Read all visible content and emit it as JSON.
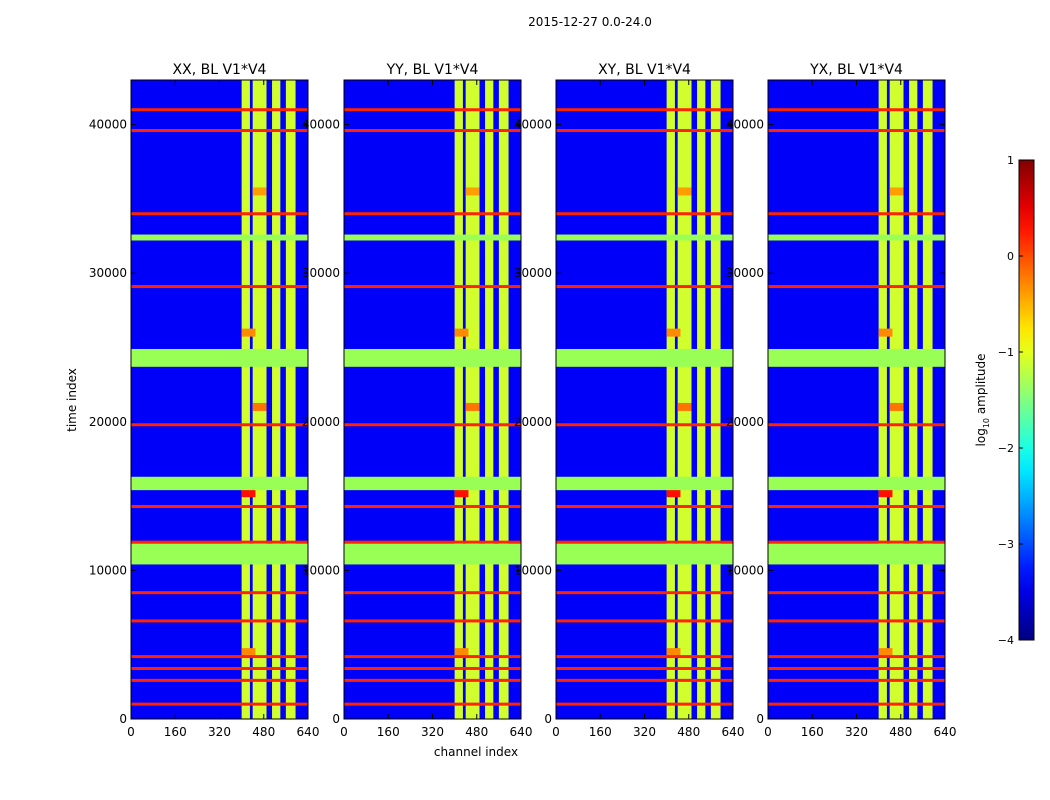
{
  "chart_data": {
    "type": "heatmap",
    "title": "2015-12-27 0.0-24.0",
    "xlabel": "channel index",
    "ylabel": "time index",
    "xlim": [
      0,
      640
    ],
    "ylim": [
      0,
      43000
    ],
    "xticks": [
      0,
      160,
      320,
      480,
      640
    ],
    "yticks": [
      0,
      10000,
      20000,
      30000,
      40000
    ],
    "colormap": "jet",
    "panels": [
      {
        "title": "XX, BL V1*V4"
      },
      {
        "title": "YY, BL V1*V4"
      },
      {
        "title": "XY, BL V1*V4"
      },
      {
        "title": "YX, BL V1*V4"
      }
    ],
    "colorbar": {
      "label": "log10 amplitude",
      "label_base": "log",
      "label_sub": "10",
      "label_rest": " amplitude",
      "range": [
        -4,
        1
      ],
      "ticks": [
        1,
        0,
        -1,
        -2,
        -3,
        -4
      ],
      "tick_labels": [
        "1",
        "0",
        "−1",
        "−2",
        "−3",
        "−4"
      ]
    },
    "flagged_time_bands": [
      [
        10400,
        11800
      ],
      [
        15400,
        16300
      ],
      [
        23700,
        24900
      ],
      [
        32200,
        32600
      ]
    ],
    "rfi_time_lines": [
      1000,
      2600,
      3400,
      4200,
      6600,
      8500,
      11900,
      14300,
      19800,
      29100,
      34000,
      39600,
      41000
    ],
    "bright_channel_bands": [
      [
        400,
        430
      ],
      [
        440,
        490
      ],
      [
        510,
        540
      ],
      [
        560,
        595
      ]
    ],
    "bright_time_blobs": [
      {
        "time": 15200,
        "channels": [
          400,
          450
        ],
        "value": 0.3
      },
      {
        "time": 21000,
        "channels": [
          440,
          490
        ],
        "value": -0.2
      },
      {
        "time": 26000,
        "channels": [
          400,
          450
        ],
        "value": -0.3
      },
      {
        "time": 35500,
        "channels": [
          440,
          490
        ],
        "value": -0.4
      },
      {
        "time": 4500,
        "channels": [
          400,
          450
        ],
        "value": -0.3
      }
    ],
    "background_level": -3.4,
    "band_level": -1.1
  }
}
